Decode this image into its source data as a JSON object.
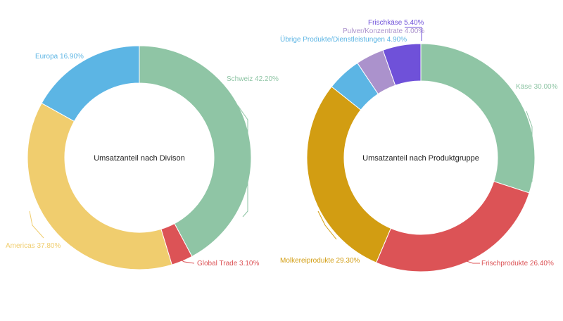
{
  "chart_data": [
    {
      "type": "pie",
      "variant": "donut",
      "title": "Umsatzanteil nach Divison",
      "slices": [
        {
          "label": "Schweiz",
          "value": 42.2,
          "display": "Schweiz 42.20%",
          "color": "#8fc5a5"
        },
        {
          "label": "Global Trade",
          "value": 3.1,
          "display": "Global Trade 3.10%",
          "color": "#dc5356"
        },
        {
          "label": "Americas",
          "value": 37.8,
          "display": "Americas 37.80%",
          "color": "#f0cd6e"
        },
        {
          "label": "Europa",
          "value": 16.9,
          "display": "Europa 16.90%",
          "color": "#5cb5e4"
        }
      ]
    },
    {
      "type": "pie",
      "variant": "donut",
      "title": "Umsatzanteil nach Produktgruppe",
      "slices": [
        {
          "label": "Käse",
          "value": 30.0,
          "display": "Käse 30.00%",
          "color": "#8fc5a5"
        },
        {
          "label": "Frischprodukte",
          "value": 26.4,
          "display": "Frischprodukte 26.40%",
          "color": "#dc5356"
        },
        {
          "label": "Molkereiprodukte",
          "value": 29.3,
          "display": "Molkereiprodukte 29.30%",
          "color": "#d29d12"
        },
        {
          "label": "Übrige Produkte/Dienstleistungen",
          "value": 4.9,
          "display": "Übrige Produkte/Dienstleistungen 4.90%",
          "color": "#5cb5e4"
        },
        {
          "label": "Pulver/Konzentrate",
          "value": 4.0,
          "display": "Pulver/Konzentrate 4.00%",
          "color": "#ab92cc"
        },
        {
          "label": "Frischkäse",
          "value": 5.4,
          "display": "Frischkäse 5.40%",
          "color": "#6f51d9"
        }
      ]
    }
  ]
}
